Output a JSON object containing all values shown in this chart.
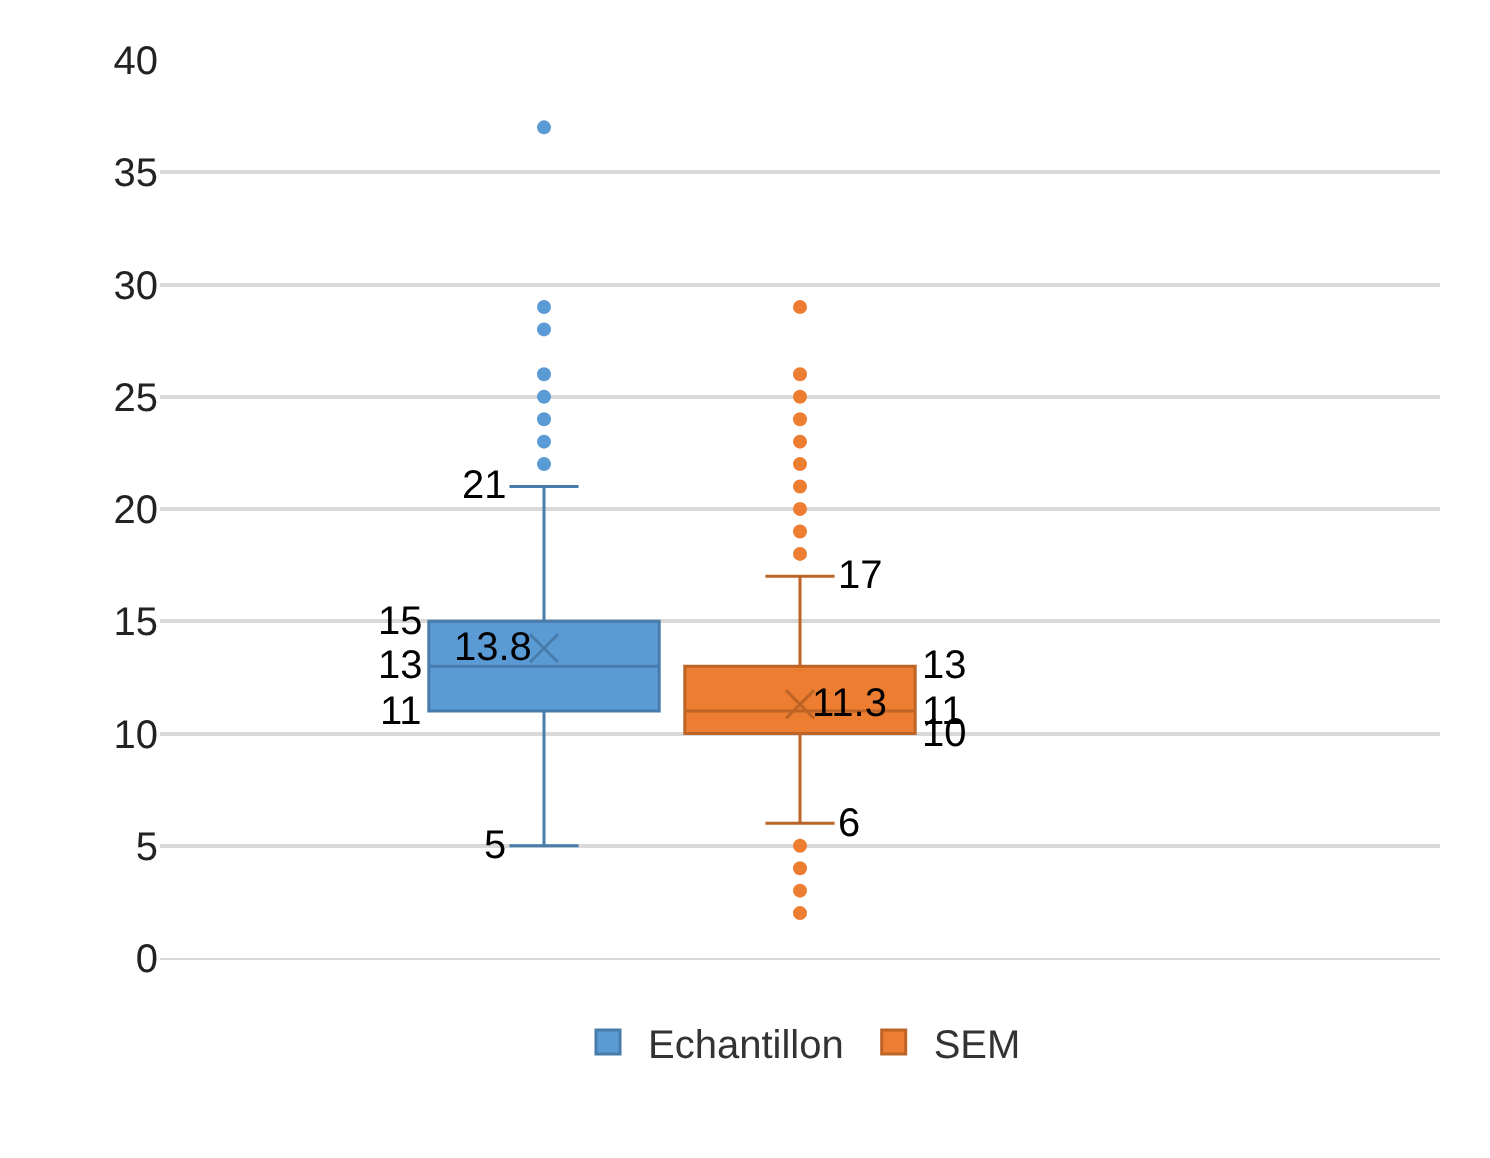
{
  "chart_data": {
    "type": "box",
    "categories": [
      null
    ],
    "ylim": [
      0,
      40
    ],
    "yticks": [
      0,
      5,
      10,
      15,
      20,
      25,
      30,
      35,
      40
    ],
    "grid": "y",
    "legend": "bottom",
    "data_labels": true,
    "series": [
      {
        "name": "Echantillon",
        "color": "#5b9bd5",
        "boxes": [
          {
            "low": 5,
            "q1": 11,
            "median": 13,
            "q3": 15,
            "high": 21,
            "mean": 13.8,
            "outliers": [
              37,
              29,
              28,
              26,
              25,
              24,
              23,
              22
            ]
          }
        ]
      },
      {
        "name": "SEM",
        "color": "#ed7d31",
        "boxes": [
          {
            "low": 6,
            "q1": 10,
            "median": 11,
            "q3": 13,
            "high": 17,
            "mean": 11.3,
            "outliers": [
              29,
              26,
              25,
              24,
              23,
              22,
              21,
              20,
              19,
              18,
              5,
              4,
              3,
              2
            ]
          }
        ]
      }
    ],
    "annotations": [
      "5",
      "21",
      "11",
      "13",
      "15",
      "13.8",
      "6",
      "17",
      "10",
      "11",
      "13",
      "11.3"
    ]
  }
}
